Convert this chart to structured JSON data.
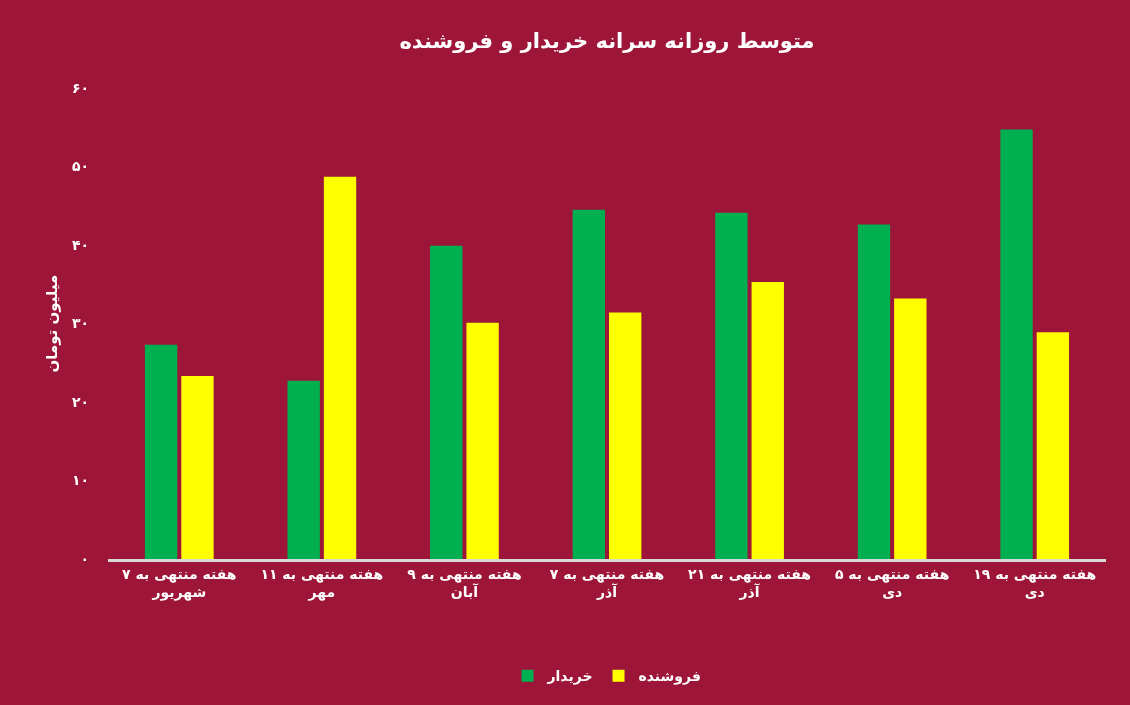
{
  "chart_data": {
    "type": "bar",
    "title": "متوسط روزانه سرانه خریدار و فروشنده",
    "ylabel": "میلیون تومان",
    "categories": [
      "هفته منتهی به ۷ شهریور",
      "هفته منتهی به ۱۱ مهر",
      "هفته منتهی به ۹ آبان",
      "هفته منتهی به ۷ آذر",
      "هفته منتهی به ۲۱ آذر",
      "هفته منتهی به ۵ دی",
      "هفته منتهی به ۱۹ دی"
    ],
    "series": [
      {
        "name": "خریدار",
        "color": "#00b050",
        "values": [
          27.3,
          22.7,
          39.9,
          44.5,
          44.1,
          42.6,
          54.7
        ]
      },
      {
        "name": "فروشنده",
        "color": "#ffff00",
        "values": [
          23.3,
          48.7,
          30.1,
          31.4,
          35.3,
          33.2,
          28.9
        ]
      }
    ],
    "ylim": [
      0,
      60
    ],
    "yticks": [
      {
        "value": 0,
        "label": "۰"
      },
      {
        "value": 10,
        "label": "۱۰"
      },
      {
        "value": 20,
        "label": "۲۰"
      },
      {
        "value": 30,
        "label": "۳۰"
      },
      {
        "value": 40,
        "label": "۴۰"
      },
      {
        "value": 50,
        "label": "۵۰"
      },
      {
        "value": 60,
        "label": "۶۰"
      }
    ],
    "legend": "bottom"
  }
}
